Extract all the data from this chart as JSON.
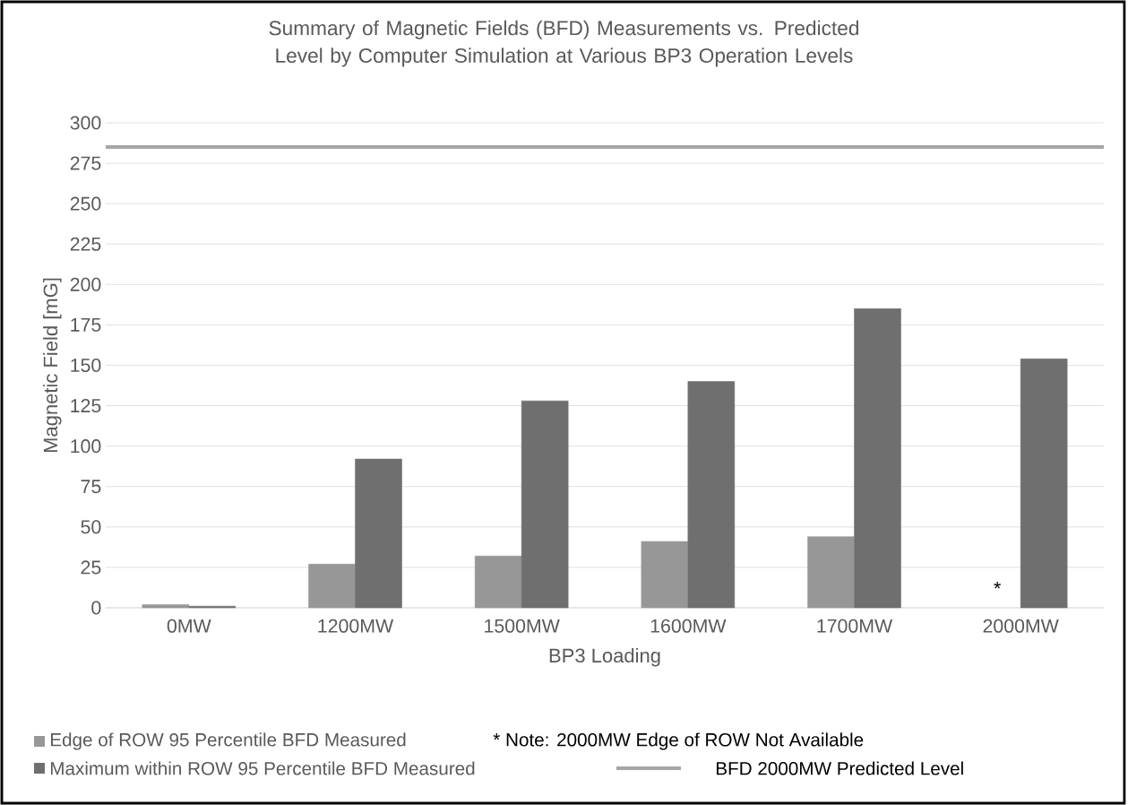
{
  "chart_data": {
    "type": "bar",
    "title": "Summary of Magnetic Fields (BFD) Measurements vs. Predicted Level by Computer Simulation at Various BP3 Operation Levels",
    "xlabel": "BP3 Loading",
    "ylabel": "Magnetic Field [mG]",
    "categories": [
      "0MW",
      "1200MW",
      "1500MW",
      "1600MW",
      "1700MW",
      "2000MW"
    ],
    "series": [
      {
        "name": "Edge of ROW 95 Percentile BFD Measured",
        "color": "#979797",
        "values": [
          2,
          27,
          32,
          41,
          44,
          null
        ]
      },
      {
        "name": "Maximum within ROW 95 Percentile BFD Measured",
        "color": "#6f6f6f",
        "values": [
          1,
          92,
          128,
          140,
          185,
          154
        ]
      }
    ],
    "ref_lines": [
      {
        "axis": "y",
        "value": 285,
        "label": "BFD 2000MW Predicted Level",
        "color": "#a6a6a6"
      }
    ],
    "annotations": [
      {
        "text": "*",
        "x": "2000MW",
        "y": 12
      },
      "* Note: 2000MW Edge of ROW Not Available"
    ],
    "ylim": [
      0,
      300
    ],
    "yticks": [
      0,
      25,
      50,
      75,
      100,
      125,
      150,
      175,
      200,
      225,
      250,
      275,
      300
    ],
    "grid": "y",
    "legend": "bottom"
  }
}
